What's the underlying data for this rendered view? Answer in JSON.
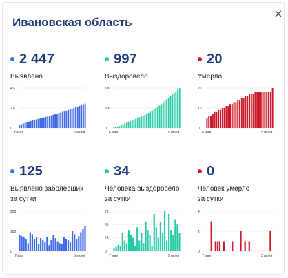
{
  "header": {
    "title": "Ивановская область"
  },
  "colors": {
    "blue": "#3d68e8",
    "green": "#25c9a6",
    "red": "#cc1a2a",
    "title": "#1f3b7a"
  },
  "panels": [
    {
      "value": "2 447",
      "label": "Выявлено",
      "label_line2": ""
    },
    {
      "value": "997",
      "label": "Выздоровело",
      "label_line2": ""
    },
    {
      "value": "20",
      "label": "Умерло",
      "label_line2": ""
    },
    {
      "value": "125",
      "label": "Выявлено заболевших",
      "label_line2": "за сутки"
    },
    {
      "value": "34",
      "label": "Человека выздоровело",
      "label_line2": "за сутки"
    },
    {
      "value": "0",
      "label": "Человек умерло",
      "label_line2": "за сутки"
    }
  ],
  "chart_data": [
    {
      "type": "bar",
      "color": "#3d68e8",
      "x_start_label": "6 мая",
      "x_end_label": "5 июня",
      "y_ticks": [
        "0",
        "2 K",
        "4 K"
      ],
      "ylim": [
        0,
        4000
      ],
      "values": [
        300,
        380,
        460,
        520,
        580,
        640,
        700,
        760,
        810,
        860,
        910,
        960,
        1010,
        1060,
        1110,
        1160,
        1210,
        1260,
        1320,
        1380,
        1440,
        1500,
        1560,
        1620,
        1680,
        1740,
        1800,
        1860,
        1920,
        1990,
        2060,
        2130,
        2210,
        2290,
        2370,
        2447
      ]
    },
    {
      "type": "bar",
      "color": "#25c9a6",
      "x_start_label": "6 мая",
      "x_end_label": "5 июня",
      "y_ticks": [
        "0",
        "500",
        "1 K"
      ],
      "ylim": [
        0,
        1000
      ],
      "values": [
        20,
        25,
        35,
        50,
        70,
        90,
        110,
        130,
        150,
        170,
        190,
        210,
        230,
        250,
        270,
        290,
        310,
        330,
        350,
        380,
        410,
        440,
        470,
        500,
        530,
        560,
        600,
        640,
        680,
        720,
        760,
        800,
        840,
        880,
        920,
        960,
        997
      ]
    },
    {
      "type": "bar",
      "color": "#cc1a2a",
      "x_start_label": "6 мая",
      "x_end_label": "5 июня",
      "y_ticks": [
        "0",
        "10",
        "20"
      ],
      "ylim": [
        0,
        20
      ],
      "values": [
        5,
        6,
        6,
        7,
        8,
        8,
        9,
        9,
        10,
        10,
        11,
        11,
        12,
        12,
        13,
        13,
        14,
        14,
        15,
        15,
        16,
        16,
        17,
        17,
        17,
        18,
        18,
        18,
        18,
        18,
        18,
        18,
        18,
        18,
        20
      ]
    },
    {
      "type": "bar",
      "color": "#3d68e8",
      "x_start_label": "7 мая",
      "x_end_label": "5 июня",
      "y_ticks": [
        "0",
        "100",
        "200"
      ],
      "ylim": [
        0,
        200
      ],
      "values": [
        80,
        75,
        70,
        60,
        40,
        95,
        85,
        60,
        70,
        35,
        65,
        55,
        45,
        70,
        30,
        55,
        80,
        65,
        50,
        40,
        35,
        70,
        60,
        55,
        45,
        100,
        85,
        60,
        75,
        95,
        110,
        125
      ]
    },
    {
      "type": "bar",
      "color": "#25c9a6",
      "x_start_label": "7 мая",
      "x_end_label": "5 июня",
      "y_ticks": [
        "0",
        "25",
        "50",
        "75"
      ],
      "ylim": [
        0,
        75
      ],
      "values": [
        5,
        8,
        12,
        10,
        35,
        20,
        15,
        40,
        30,
        25,
        10,
        45,
        20,
        35,
        15,
        55,
        40,
        30,
        10,
        70,
        45,
        25,
        55,
        35,
        75,
        20,
        70,
        40,
        30,
        60,
        50,
        34
      ]
    },
    {
      "type": "bar",
      "color": "#cc1a2a",
      "x_start_label": "7 мая",
      "x_end_label": "5 июня",
      "y_ticks": [
        "0",
        "2",
        "4"
      ],
      "ylim": [
        0,
        4
      ],
      "values": [
        0,
        0,
        3,
        0,
        1,
        1,
        1,
        0,
        1,
        0,
        0,
        0,
        1,
        0,
        0,
        0,
        2,
        0,
        1,
        0,
        1,
        0,
        0,
        0,
        0,
        0,
        0,
        0,
        0,
        0,
        2,
        0
      ]
    }
  ]
}
